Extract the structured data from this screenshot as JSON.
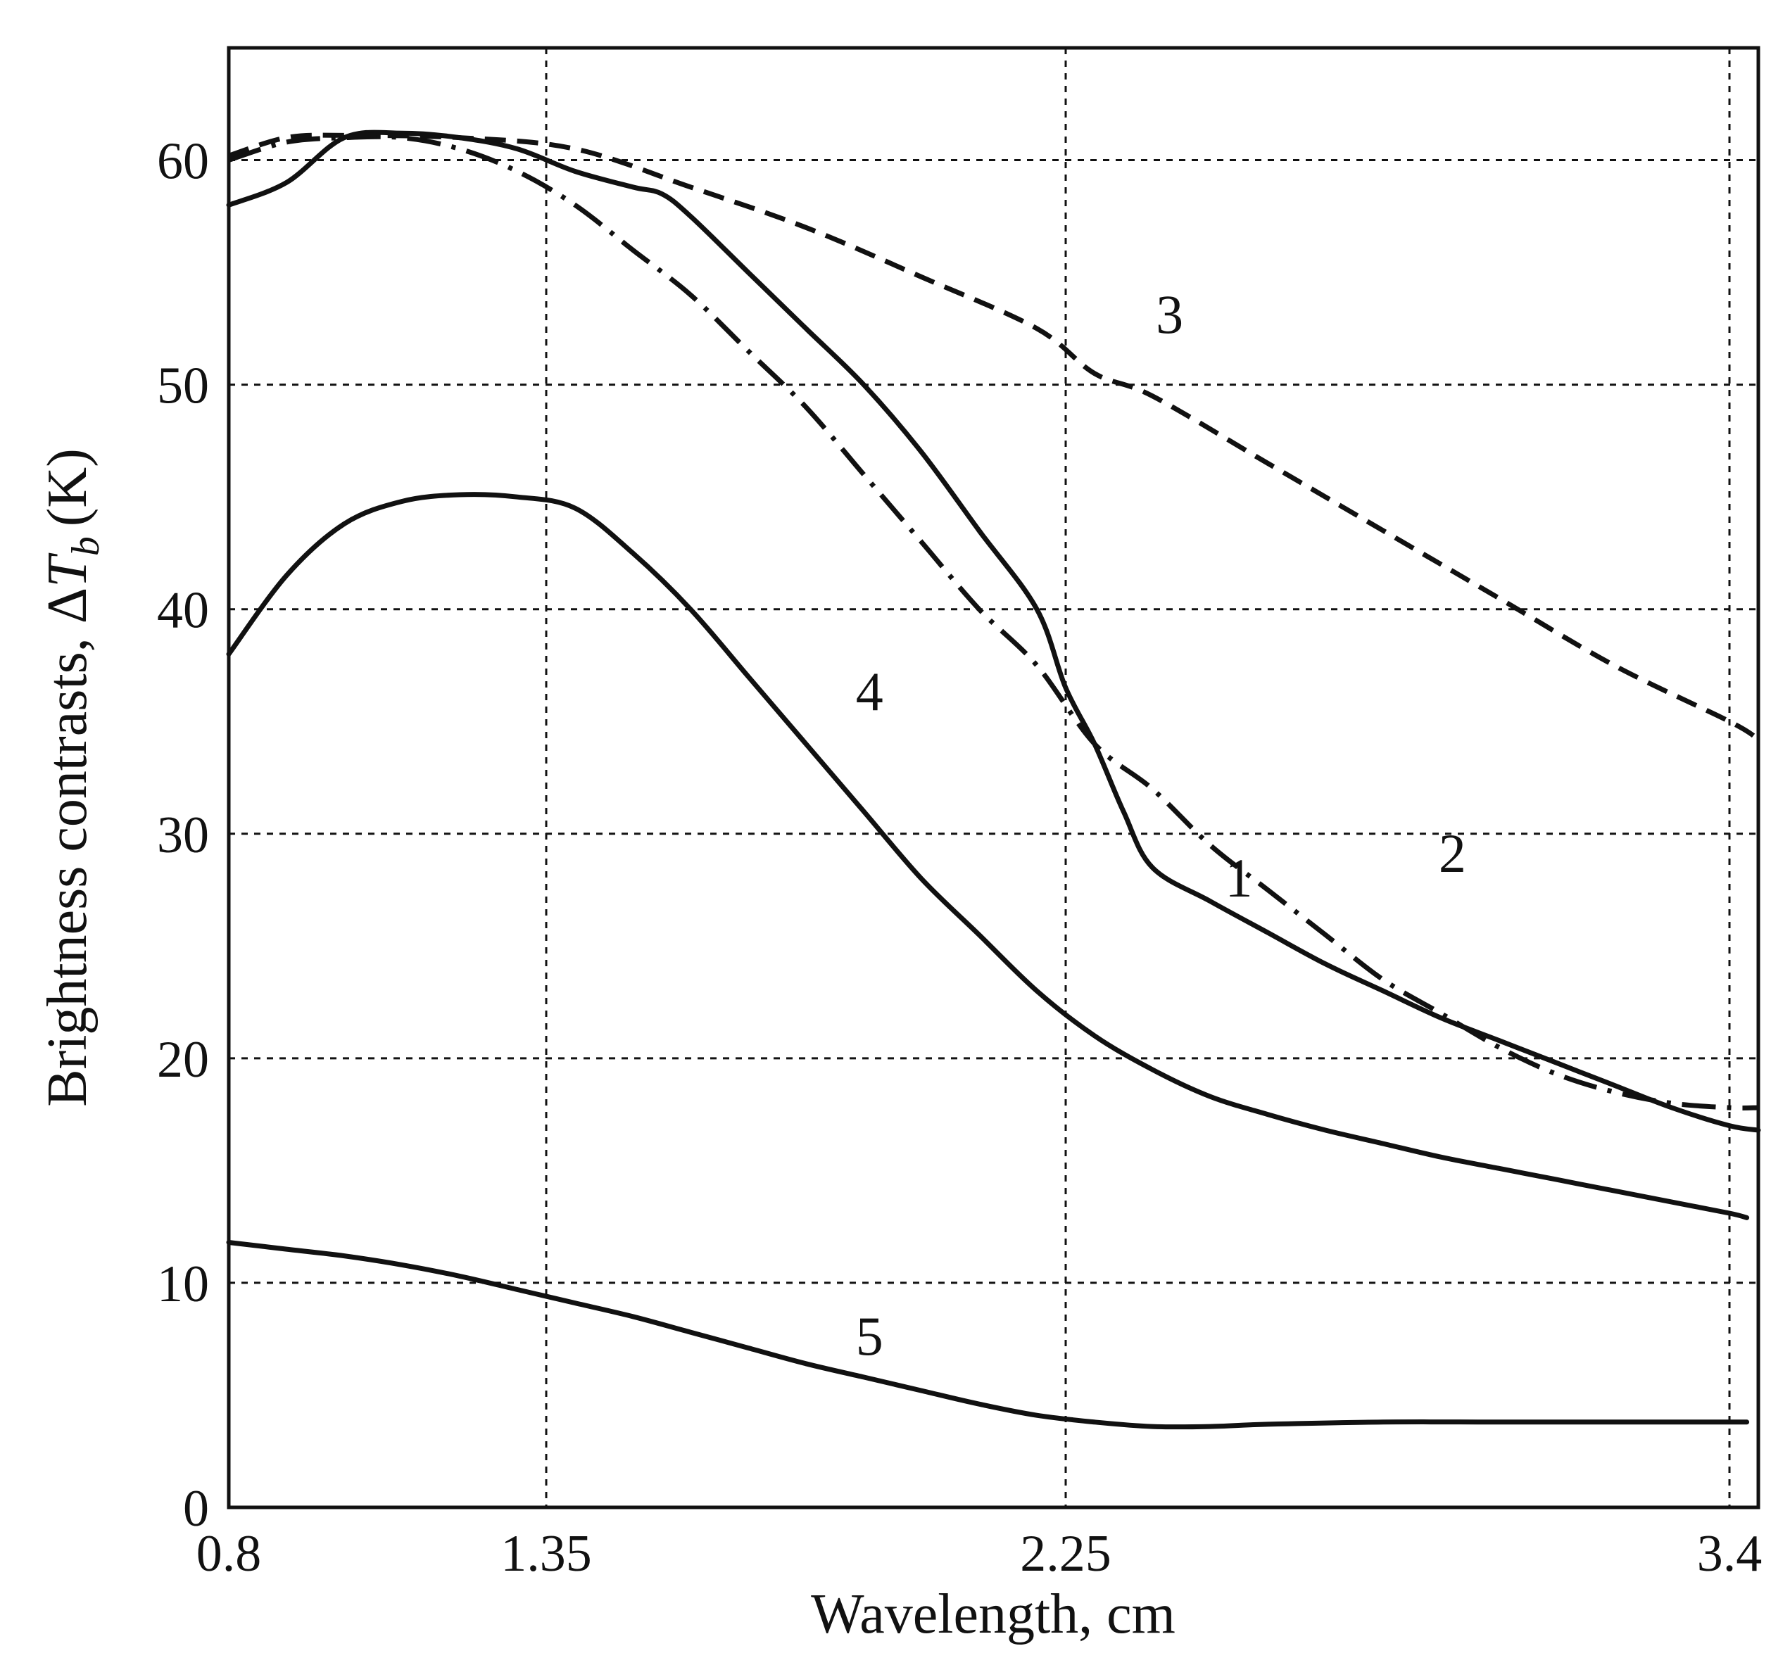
{
  "chart_data": {
    "type": "line",
    "title": "",
    "xlabel": "Wavelength, cm",
    "ylabel_main": "Brightness contrasts, Δ",
    "ylabel_var": "T",
    "ylabel_sub": "b",
    "ylabel_unit": "(K)",
    "xlim": [
      0.8,
      3.45
    ],
    "ylim": [
      0,
      65
    ],
    "xticks": [
      0.8,
      1.35,
      2.25,
      3.4
    ],
    "xtick_labels": [
      "0.8",
      "1.35",
      "2.25",
      "3.4"
    ],
    "yticks": [
      0,
      10,
      20,
      30,
      40,
      50,
      60
    ],
    "ytick_labels": [
      "0",
      "10",
      "20",
      "30",
      "40",
      "50",
      "60"
    ],
    "grid": true,
    "series": [
      {
        "name": "1",
        "style": "solid",
        "x": [
          0.8,
          0.9,
          1.0,
          1.1,
          1.2,
          1.3,
          1.4,
          1.5,
          1.55,
          1.6,
          1.7,
          1.8,
          1.9,
          2.0,
          2.1,
          2.2,
          2.25,
          2.3,
          2.35,
          2.4,
          2.5,
          2.6,
          2.7,
          2.8,
          2.9,
          3.0,
          3.1,
          3.2,
          3.3,
          3.4,
          3.45
        ],
        "y": [
          58,
          59,
          61,
          61.2,
          61.0,
          60.5,
          59.5,
          58.8,
          58.5,
          57.5,
          55,
          52.5,
          50,
          47,
          43.5,
          40,
          36.5,
          34,
          31,
          28.5,
          27,
          25.6,
          24.2,
          23.0,
          21.8,
          20.8,
          19.8,
          18.8,
          17.8,
          17.0,
          16.8
        ]
      },
      {
        "name": "2",
        "style": "dashdot",
        "x": [
          0.8,
          0.9,
          1.0,
          1.1,
          1.2,
          1.3,
          1.4,
          1.5,
          1.6,
          1.7,
          1.8,
          1.9,
          2.0,
          2.1,
          2.2,
          2.3,
          2.4,
          2.5,
          2.6,
          2.7,
          2.8,
          2.9,
          3.0,
          3.1,
          3.2,
          3.3,
          3.4,
          3.45
        ],
        "y": [
          60,
          60.8,
          61,
          61,
          60.5,
          59.5,
          58,
          56,
          54,
          51.5,
          49,
          46,
          43,
          40,
          37.5,
          34,
          32,
          29.5,
          27.5,
          25.5,
          23.5,
          22,
          20.5,
          19.3,
          18.5,
          18.0,
          17.8,
          17.8
        ]
      },
      {
        "name": "3",
        "style": "dashed",
        "x": [
          0.8,
          0.9,
          1.0,
          1.2,
          1.4,
          1.6,
          1.8,
          2.0,
          2.2,
          2.3,
          2.4,
          2.6,
          2.8,
          3.0,
          3.2,
          3.4,
          3.45
        ],
        "y": [
          60.2,
          61,
          61.1,
          61,
          60.5,
          58.8,
          57,
          54.8,
          52.5,
          50.5,
          49.5,
          46.5,
          43.5,
          40.5,
          37.5,
          35,
          34.2
        ]
      },
      {
        "name": "4",
        "style": "solid",
        "x": [
          0.8,
          0.9,
          1.0,
          1.1,
          1.2,
          1.3,
          1.4,
          1.5,
          1.6,
          1.7,
          1.8,
          1.9,
          2.0,
          2.1,
          2.2,
          2.3,
          2.4,
          2.5,
          2.6,
          2.7,
          2.8,
          2.9,
          3.0,
          3.1,
          3.2,
          3.3,
          3.4,
          3.43
        ],
        "y": [
          38,
          41.5,
          43.8,
          44.8,
          45.1,
          45.0,
          44.5,
          42.5,
          40,
          37,
          34,
          31,
          28,
          25.5,
          23,
          21,
          19.5,
          18.3,
          17.5,
          16.8,
          16.2,
          15.6,
          15.1,
          14.6,
          14.1,
          13.6,
          13.1,
          12.9
        ]
      },
      {
        "name": "5",
        "style": "solid",
        "x": [
          0.8,
          0.9,
          1.0,
          1.1,
          1.2,
          1.3,
          1.4,
          1.5,
          1.6,
          1.7,
          1.8,
          1.9,
          2.0,
          2.1,
          2.2,
          2.3,
          2.4,
          2.5,
          2.6,
          2.8,
          3.0,
          3.2,
          3.4,
          3.43
        ],
        "y": [
          11.8,
          11.5,
          11.2,
          10.8,
          10.3,
          9.7,
          9.1,
          8.5,
          7.8,
          7.1,
          6.4,
          5.8,
          5.2,
          4.6,
          4.1,
          3.8,
          3.6,
          3.6,
          3.7,
          3.8,
          3.8,
          3.8,
          3.8,
          3.8
        ]
      }
    ],
    "annotations": [
      {
        "text": "1",
        "x": 2.55,
        "y": 27.2
      },
      {
        "text": "2",
        "x": 2.92,
        "y": 28.3
      },
      {
        "text": "3",
        "x": 2.43,
        "y": 52.3
      },
      {
        "text": "4",
        "x": 1.91,
        "y": 35.5
      },
      {
        "text": "5",
        "x": 1.91,
        "y": 6.8
      }
    ]
  }
}
